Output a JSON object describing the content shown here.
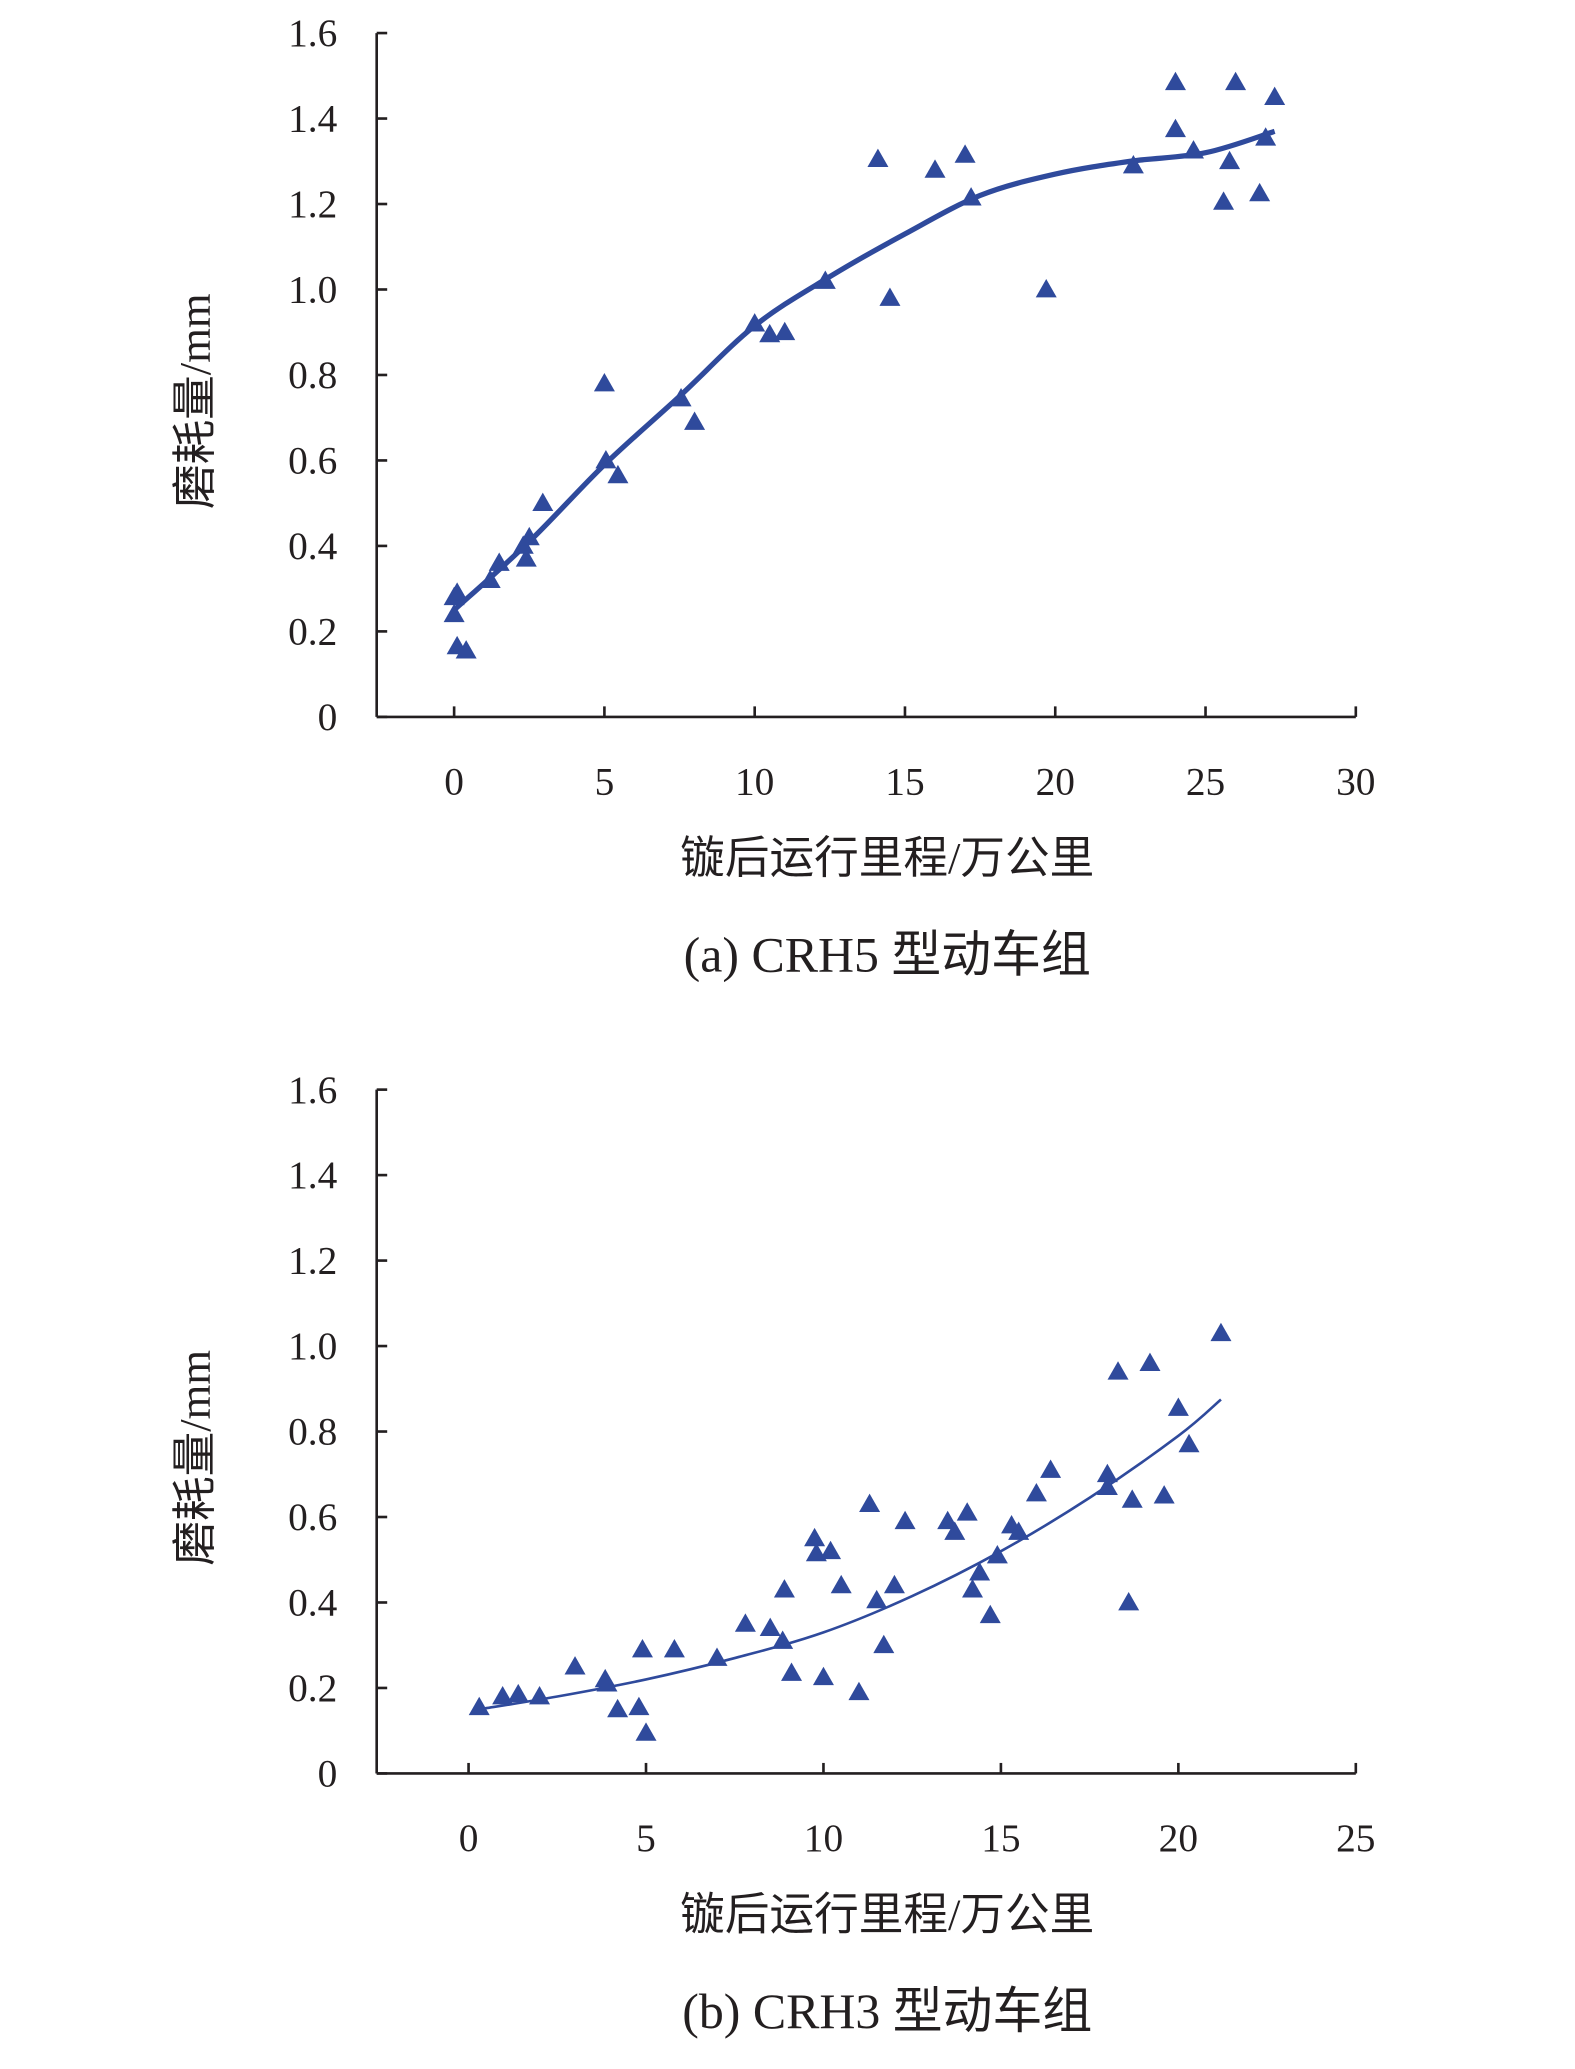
{
  "chart_data": [
    {
      "type": "scatter",
      "caption": "(a) CRH5 型动车组",
      "xlabel": "镟后运行里程/万公里",
      "ylabel": "磨耗量/mm",
      "xlim": [
        0,
        30
      ],
      "ylim": [
        0,
        1.6
      ],
      "xticks": [
        "0",
        "5",
        "10",
        "15",
        "20",
        "25",
        "30"
      ],
      "yticks": [
        "0",
        "0.2",
        "0.4",
        "0.6",
        "0.8",
        "1.0",
        "1.2",
        "1.4",
        "1.6"
      ],
      "grid": false,
      "color": "#2f4a9c",
      "points": [
        [
          0,
          0.28
        ],
        [
          0.1,
          0.29
        ],
        [
          0,
          0.24
        ],
        [
          0.1,
          0.165
        ],
        [
          0.4,
          0.155
        ],
        [
          1.2,
          0.32
        ],
        [
          1.5,
          0.36
        ],
        [
          2.3,
          0.4
        ],
        [
          2.4,
          0.37
        ],
        [
          2.5,
          0.42
        ],
        [
          2.95,
          0.5
        ],
        [
          5.0,
          0.78
        ],
        [
          5.05,
          0.6
        ],
        [
          5.45,
          0.565
        ],
        [
          7.55,
          0.745
        ],
        [
          8.0,
          0.69
        ],
        [
          10.0,
          0.92
        ],
        [
          10.5,
          0.895
        ],
        [
          11.0,
          0.9
        ],
        [
          12.35,
          1.02
        ],
        [
          14.1,
          1.305
        ],
        [
          14.5,
          0.98
        ],
        [
          16.0,
          1.28
        ],
        [
          17.0,
          1.315
        ],
        [
          17.2,
          1.215
        ],
        [
          19.7,
          1.0
        ],
        [
          22.6,
          1.29
        ],
        [
          24.0,
          1.485
        ],
        [
          24.0,
          1.375
        ],
        [
          24.6,
          1.325
        ],
        [
          26.0,
          1.485
        ],
        [
          25.8,
          1.3
        ],
        [
          25.6,
          1.205
        ],
        [
          26.8,
          1.225
        ],
        [
          27.0,
          1.355
        ],
        [
          27.3,
          1.45
        ]
      ],
      "trend": [
        [
          0,
          0.25
        ],
        [
          2.5,
          0.41
        ],
        [
          5,
          0.59
        ],
        [
          7.5,
          0.75
        ],
        [
          10,
          0.915
        ],
        [
          12.5,
          1.03
        ],
        [
          15,
          1.13
        ],
        [
          17.5,
          1.22
        ],
        [
          20,
          1.27
        ],
        [
          22.5,
          1.3
        ],
        [
          25,
          1.32
        ],
        [
          27.3,
          1.37
        ]
      ]
    },
    {
      "type": "scatter",
      "caption": "(b) CRH3 型动车组",
      "xlabel": "镟后运行里程/万公里",
      "ylabel": "磨耗量/mm",
      "xlim": [
        0,
        25
      ],
      "ylim": [
        0,
        1.6
      ],
      "xticks": [
        "0",
        "5",
        "10",
        "15",
        "20",
        "25"
      ],
      "yticks": [
        "0",
        "0.2",
        "0.4",
        "0.6",
        "0.8",
        "1.0",
        "1.2",
        "1.4",
        "1.6"
      ],
      "grid": false,
      "color": "#2f4a9c",
      "points": [
        [
          0.3,
          0.155
        ],
        [
          0.96,
          0.18
        ],
        [
          1.4,
          0.185
        ],
        [
          2.0,
          0.18
        ],
        [
          3.0,
          0.25
        ],
        [
          3.85,
          0.22
        ],
        [
          3.9,
          0.21
        ],
        [
          4.2,
          0.15
        ],
        [
          4.8,
          0.155
        ],
        [
          4.9,
          0.29
        ],
        [
          5.0,
          0.095
        ],
        [
          5.8,
          0.29
        ],
        [
          7.0,
          0.27
        ],
        [
          7.8,
          0.35
        ],
        [
          8.5,
          0.34
        ],
        [
          8.85,
          0.31
        ],
        [
          8.9,
          0.43
        ],
        [
          9.1,
          0.235
        ],
        [
          9.75,
          0.55
        ],
        [
          9.8,
          0.515
        ],
        [
          10.2,
          0.52
        ],
        [
          10.0,
          0.225
        ],
        [
          10.5,
          0.44
        ],
        [
          11.0,
          0.19
        ],
        [
          11.3,
          0.63
        ],
        [
          11.5,
          0.405
        ],
        [
          11.7,
          0.3
        ],
        [
          12.0,
          0.44
        ],
        [
          12.3,
          0.59
        ],
        [
          13.5,
          0.59
        ],
        [
          13.7,
          0.565
        ],
        [
          14.05,
          0.61
        ],
        [
          14.2,
          0.43
        ],
        [
          14.4,
          0.47
        ],
        [
          14.7,
          0.37
        ],
        [
          14.9,
          0.51
        ],
        [
          15.3,
          0.58
        ],
        [
          15.5,
          0.565
        ],
        [
          16.0,
          0.655
        ],
        [
          16.4,
          0.71
        ],
        [
          18.0,
          0.7
        ],
        [
          18.0,
          0.67
        ],
        [
          18.3,
          0.94
        ],
        [
          18.6,
          0.4
        ],
        [
          18.7,
          0.64
        ],
        [
          19.2,
          0.96
        ],
        [
          19.6,
          0.65
        ],
        [
          20.0,
          0.855
        ],
        [
          20.3,
          0.77
        ],
        [
          21.2,
          1.03
        ]
      ],
      "trend": [
        [
          0.3,
          0.15
        ],
        [
          2.5,
          0.18
        ],
        [
          5,
          0.22
        ],
        [
          7.5,
          0.27
        ],
        [
          10,
          0.33
        ],
        [
          12.5,
          0.415
        ],
        [
          15,
          0.52
        ],
        [
          17.5,
          0.645
        ],
        [
          20,
          0.79
        ],
        [
          21.2,
          0.875
        ]
      ]
    }
  ]
}
